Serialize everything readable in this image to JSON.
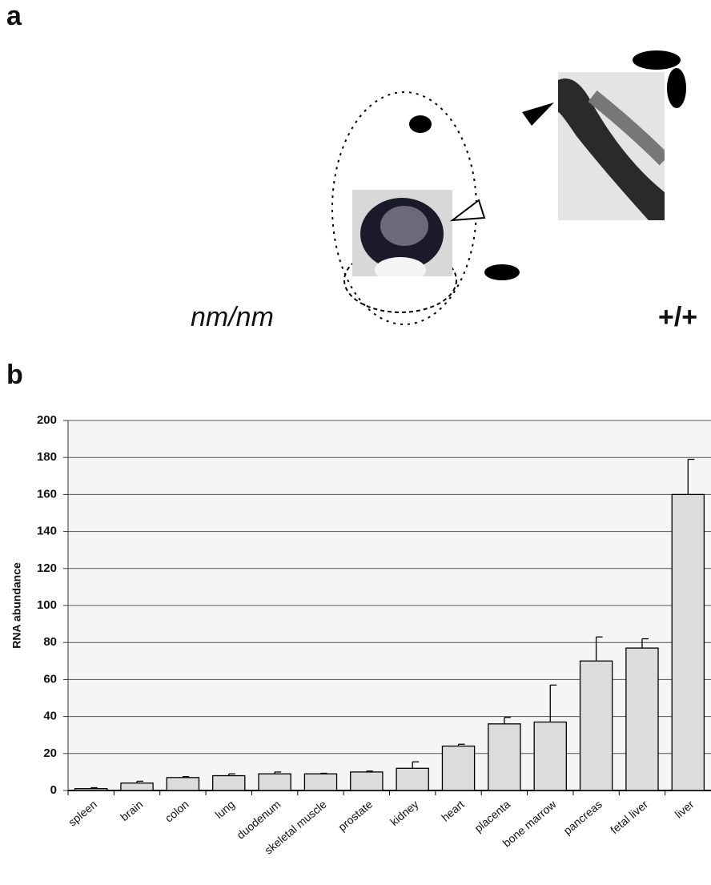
{
  "panels": {
    "a": {
      "label": "a",
      "left_label": "nm/nm",
      "right_label": "+/+"
    },
    "b": {
      "label": "b"
    }
  },
  "chart_data": {
    "type": "bar",
    "ylabel": "RNA abundance",
    "categories": [
      "spleen",
      "brain",
      "colon",
      "lung",
      "duodenum",
      "skeletal muscle",
      "prostate",
      "kidney",
      "heart",
      "placenta",
      "bone marrow",
      "pancreas",
      "fetal liver",
      "liver"
    ],
    "values": [
      1,
      4,
      7,
      8,
      9,
      9,
      10,
      12,
      24,
      36,
      37,
      70,
      77,
      160
    ],
    "errors": [
      0.5,
      1,
      0.5,
      1,
      1,
      0.3,
      0.5,
      3.5,
      1,
      3.5,
      20,
      13,
      5,
      19
    ],
    "color": "#dcdcdc",
    "ylim": [
      0,
      200
    ],
    "yticks": [
      0,
      20,
      40,
      60,
      80,
      100,
      120,
      140,
      160,
      180,
      200
    ],
    "grid": true
  }
}
